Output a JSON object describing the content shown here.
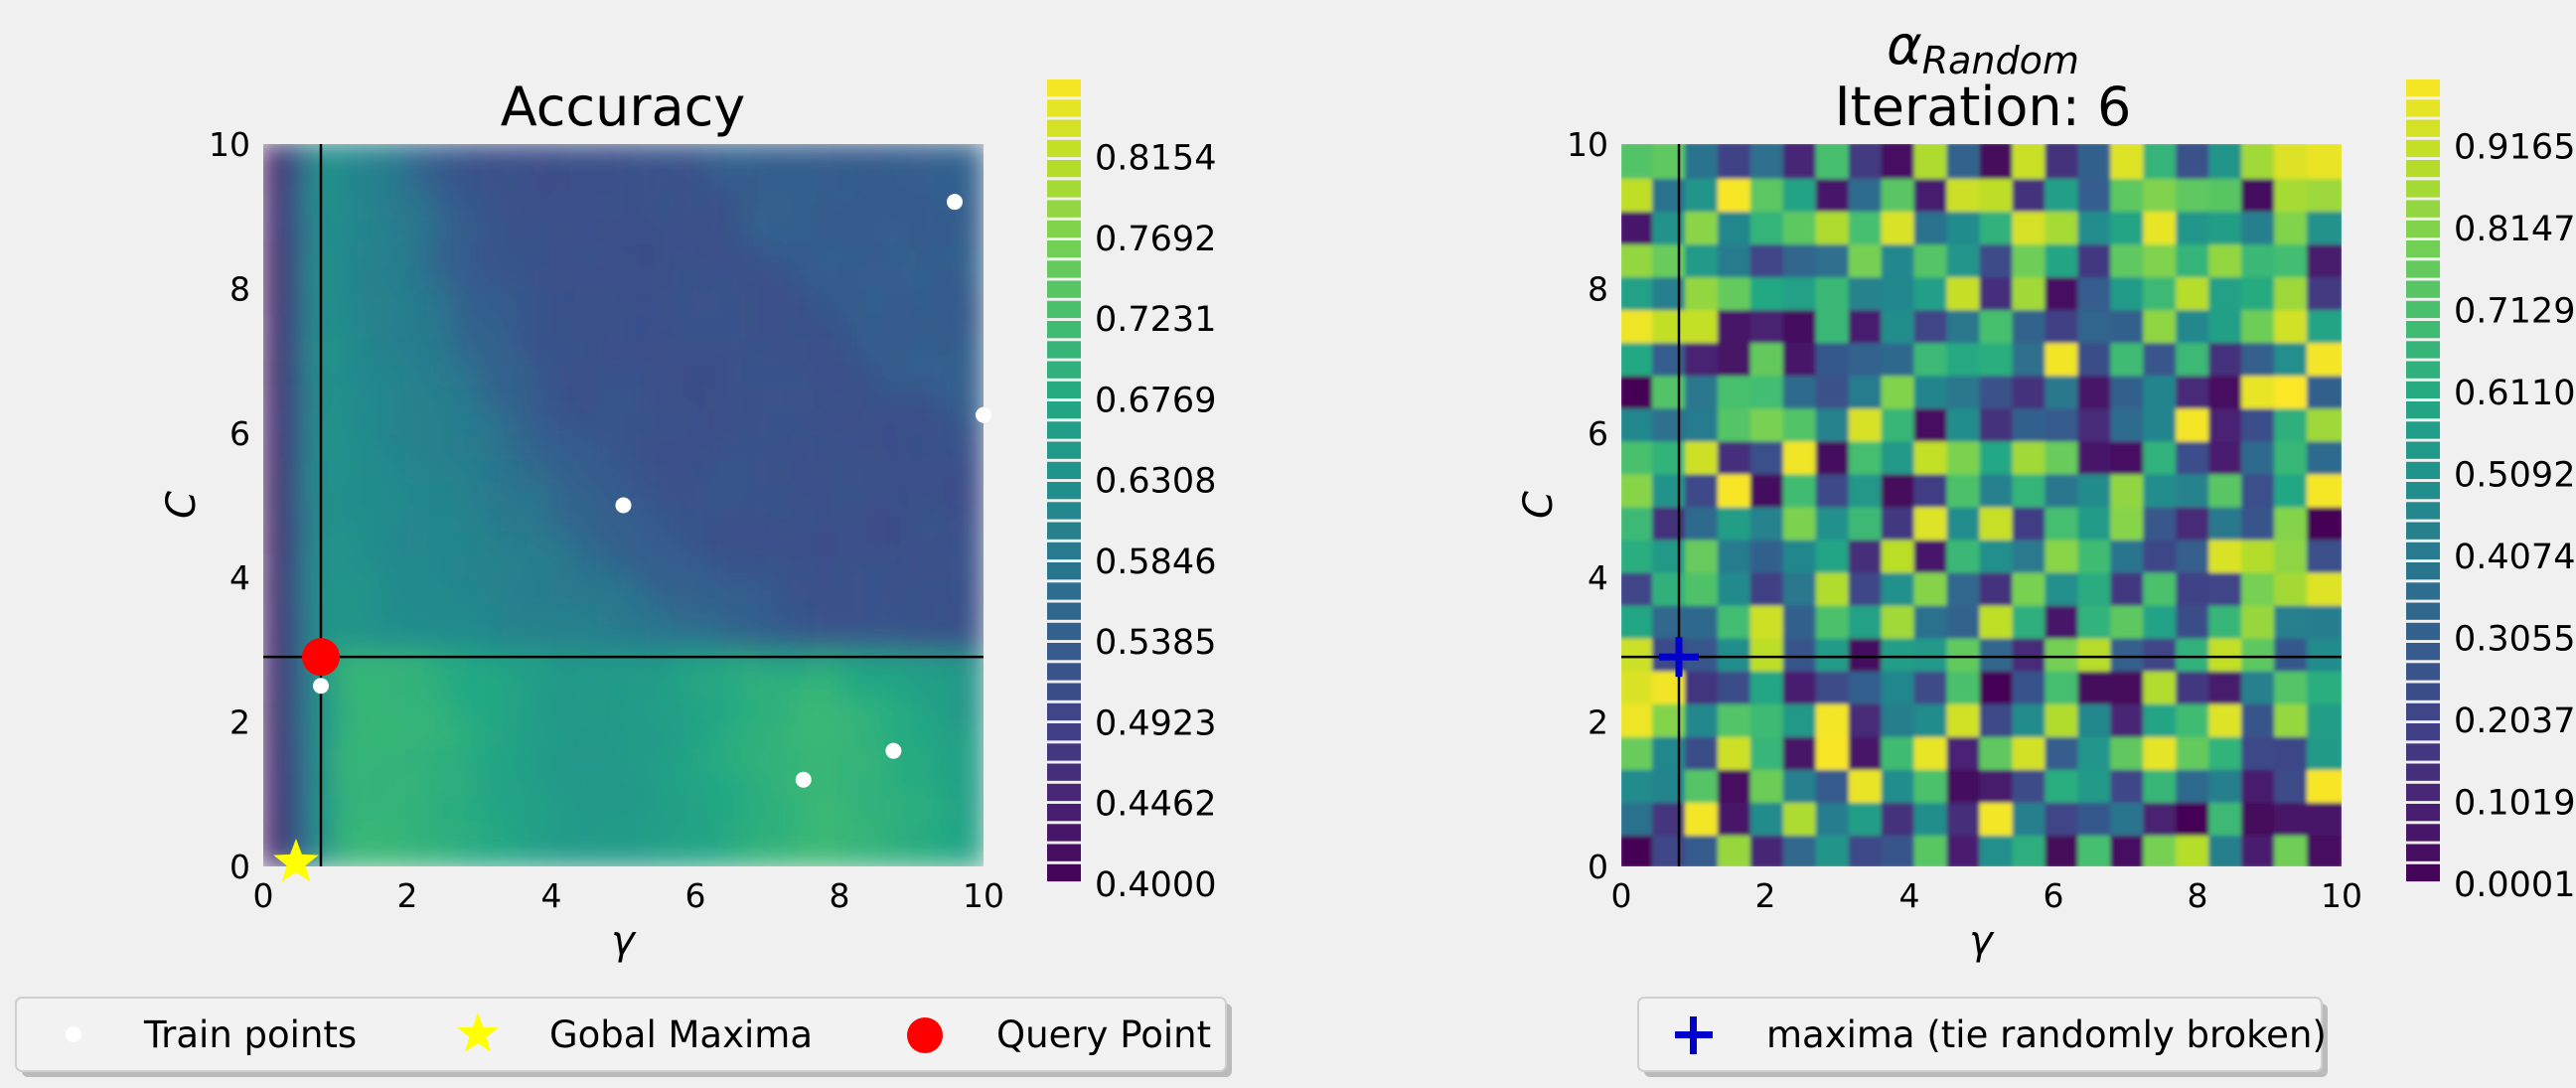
{
  "chart_data": [
    {
      "type": "heatmap",
      "title": "Accuracy",
      "xlabel": "γ",
      "ylabel": "C",
      "xlim": [
        0,
        10
      ],
      "ylim": [
        0,
        10
      ],
      "xticks": [
        "0",
        "2",
        "4",
        "6",
        "8",
        "10"
      ],
      "yticks": [
        "0",
        "2",
        "4",
        "6",
        "8",
        "10"
      ],
      "colorbar_ticks": [
        "0.4000",
        "0.4462",
        "0.4923",
        "0.5385",
        "0.5846",
        "0.6308",
        "0.6769",
        "0.7231",
        "0.7692",
        "0.8154"
      ],
      "colorbar_range": [
        0.4,
        0.86
      ],
      "colormap": "viridis",
      "crosshair": {
        "x": 0.8,
        "y": 2.9
      },
      "series": [
        {
          "name": "Train points",
          "marker": "dot",
          "color": "#ffffff",
          "points": [
            [
              0.8,
              2.5
            ],
            [
              5.0,
              5.0
            ],
            [
              7.5,
              1.2
            ],
            [
              8.75,
              1.6
            ],
            [
              9.6,
              9.2
            ],
            [
              10.0,
              6.25
            ]
          ]
        },
        {
          "name": "Gobal Maxima",
          "marker": "star",
          "color": "#ffff00",
          "points": [
            [
              0.4,
              0.0
            ]
          ]
        },
        {
          "name": "Query Point",
          "marker": "circle",
          "color": "#ff0000",
          "points": [
            [
              0.8,
              2.9
            ]
          ]
        }
      ]
    },
    {
      "type": "heatmap",
      "title": "α_Random",
      "title_main": "α",
      "title_sub": "Random",
      "subtitle": "Iteration: 6",
      "xlabel": "γ",
      "ylabel": "C",
      "xlim": [
        0,
        10
      ],
      "ylim": [
        0,
        10
      ],
      "xticks": [
        "0",
        "2",
        "4",
        "6",
        "8",
        "10"
      ],
      "yticks": [
        "0",
        "2",
        "4",
        "6",
        "8",
        "10"
      ],
      "colorbar_ticks": [
        "0.0001",
        "0.1019",
        "0.2037",
        "0.3055",
        "0.4074",
        "0.5092",
        "0.6110",
        "0.7129",
        "0.8147",
        "0.9165"
      ],
      "colorbar_range": [
        0.0001,
        1.0
      ],
      "colormap": "viridis",
      "crosshair": {
        "x": 0.8,
        "y": 2.9
      },
      "series": [
        {
          "name": "maxima (tie randomly broken)",
          "marker": "plus",
          "color": "#0000cc",
          "points": [
            [
              0.8,
              2.9
            ]
          ]
        }
      ]
    }
  ],
  "legend_left": [
    {
      "label": "Train points",
      "marker": "dot",
      "color": "#ffffff"
    },
    {
      "label": "Gobal Maxima",
      "marker": "star",
      "color": "#ffff00"
    },
    {
      "label": "Query Point",
      "marker": "circle",
      "color": "#ff0000"
    }
  ],
  "legend_right": [
    {
      "label": "maxima (tie randomly broken)",
      "marker": "plus",
      "color": "#0000cc"
    }
  ]
}
